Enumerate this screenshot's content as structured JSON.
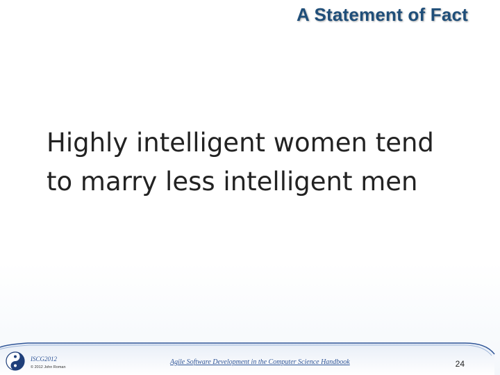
{
  "slide": {
    "title": "A Statement of Fact",
    "body_lines": [
      "Highly intelligent women tend",
      "to marry less intelligent men"
    ]
  },
  "footer": {
    "conference_label": "ISCG2012",
    "copyright": "© 2012  John Roman",
    "book_title": "Agile Software Development in the Computer Science Handbook",
    "page_number": "24",
    "logo_icon": "yin-yang-icon"
  },
  "colors": {
    "title": "#1f4e79",
    "body_text": "#222222",
    "footer_accent": "#2f5597",
    "footer_band": "#dce6f2"
  }
}
